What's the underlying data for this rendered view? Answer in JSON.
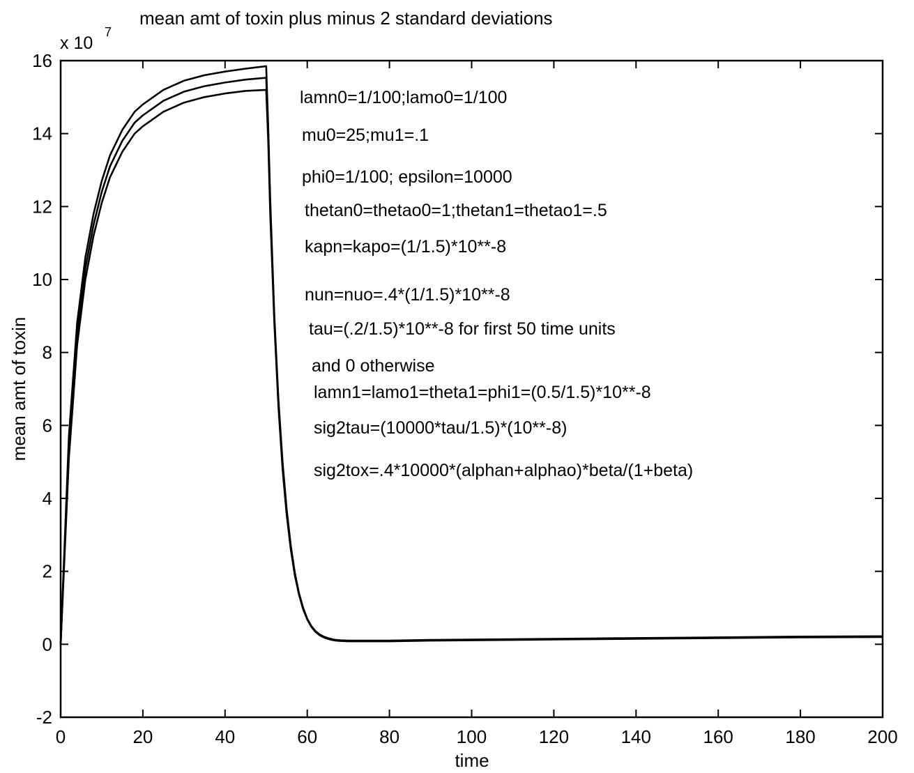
{
  "chart_data": {
    "type": "line",
    "title": "mean amt of toxin plus minus 2 standard deviations",
    "xlabel": "time",
    "ylabel": "mean amt of toxin",
    "y_multiplier_base": "x 10",
    "y_multiplier_exponent": "7",
    "xlim": [
      0,
      200
    ],
    "ylim": [
      -2,
      16
    ],
    "xticks": [
      0,
      20,
      40,
      60,
      80,
      100,
      120,
      140,
      160,
      180,
      200
    ],
    "yticks": [
      -2,
      0,
      2,
      4,
      6,
      8,
      10,
      12,
      14,
      16
    ],
    "grid": false,
    "legend": "none",
    "series": [
      {
        "x": [
          0,
          2,
          4,
          6,
          8,
          10,
          12,
          15,
          18,
          20,
          25,
          30,
          35,
          40,
          45,
          50,
          50.5,
          51,
          52,
          53,
          54,
          55,
          56,
          57,
          58,
          59,
          60,
          61,
          62,
          63,
          64,
          65,
          66,
          67,
          68,
          70,
          75,
          80,
          90,
          100,
          120,
          140,
          160,
          180,
          200
        ],
        "y": [
          0,
          5.7,
          8.8,
          10.6,
          11.8,
          12.7,
          13.4,
          14.1,
          14.6,
          14.8,
          15.2,
          15.45,
          15.6,
          15.7,
          15.78,
          15.85,
          14.2,
          12.2,
          9.0,
          6.7,
          5.0,
          3.7,
          2.7,
          1.95,
          1.4,
          1.0,
          0.7,
          0.5,
          0.36,
          0.27,
          0.21,
          0.17,
          0.14,
          0.12,
          0.11,
          0.1,
          0.1,
          0.1,
          0.12,
          0.13,
          0.15,
          0.17,
          0.19,
          0.21,
          0.22
        ]
      },
      {
        "x": [
          0,
          2,
          4,
          6,
          8,
          10,
          12,
          15,
          18,
          20,
          25,
          30,
          35,
          40,
          45,
          50,
          50.5,
          51,
          52,
          53,
          54,
          55,
          56,
          57,
          58,
          59,
          60,
          61,
          62,
          63,
          64,
          65,
          66,
          67,
          68,
          70,
          75,
          80,
          90,
          100,
          120,
          140,
          160,
          180,
          200
        ],
        "y": [
          0,
          5.4,
          8.5,
          10.3,
          11.5,
          12.4,
          13.1,
          13.8,
          14.3,
          14.5,
          14.9,
          15.15,
          15.3,
          15.4,
          15.48,
          15.53,
          14.0,
          12.0,
          8.9,
          6.6,
          4.9,
          3.6,
          2.65,
          1.9,
          1.38,
          0.98,
          0.69,
          0.49,
          0.35,
          0.26,
          0.2,
          0.16,
          0.13,
          0.11,
          0.1,
          0.09,
          0.09,
          0.09,
          0.11,
          0.12,
          0.14,
          0.16,
          0.18,
          0.2,
          0.21
        ]
      },
      {
        "x": [
          0,
          2,
          4,
          6,
          8,
          10,
          12,
          15,
          18,
          20,
          25,
          30,
          35,
          40,
          45,
          50,
          50.5,
          51,
          52,
          53,
          54,
          55,
          56,
          57,
          58,
          59,
          60,
          61,
          62,
          63,
          64,
          65,
          66,
          67,
          68,
          70,
          75,
          80,
          90,
          100,
          120,
          140,
          160,
          180,
          200
        ],
        "y": [
          0,
          5.1,
          8.2,
          10.0,
          11.2,
          12.1,
          12.8,
          13.5,
          14.0,
          14.2,
          14.6,
          14.85,
          15.0,
          15.1,
          15.17,
          15.2,
          13.8,
          11.8,
          8.8,
          6.5,
          4.8,
          3.55,
          2.6,
          1.88,
          1.36,
          0.96,
          0.68,
          0.48,
          0.34,
          0.25,
          0.19,
          0.15,
          0.12,
          0.1,
          0.09,
          0.08,
          0.08,
          0.08,
          0.1,
          0.11,
          0.13,
          0.15,
          0.17,
          0.19,
          0.2
        ]
      }
    ],
    "annotations": [
      "lamn0=1/100;lamo0=1/100",
      "mu0=25;mu1=.1",
      "phi0=1/100; epsilon=10000",
      "thetan0=thetao0=1;thetan1=thetao1=.5",
      "kapn=kapo=(1/1.5)*10**-8",
      "nun=nuo=.4*(1/1.5)*10**-8",
      "tau=(.2/1.5)*10**-8 for first 50 time units",
      "and 0 otherwise",
      "lamn1=lamo1=theta1=phi1=(0.5/1.5)*10**-8",
      "sig2tau=(10000*tau/1.5)*(10**-8)",
      "sig2tox=.4*10000*(alphan+alphao)*beta/(1+beta)"
    ]
  }
}
